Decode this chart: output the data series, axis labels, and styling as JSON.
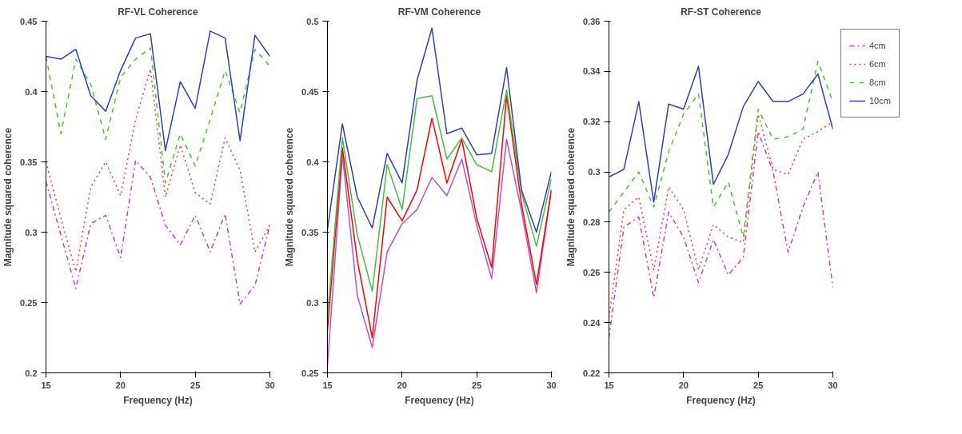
{
  "chart_data": [
    {
      "type": "line",
      "title": "RF-VL Coherence",
      "xlabel": "Frequency (Hz)",
      "ylabel": "Magnitude squared coherence",
      "x": [
        15,
        16,
        17,
        18,
        19,
        20,
        21,
        22,
        23,
        24,
        25,
        26,
        27,
        28,
        29,
        30
      ],
      "xlim": [
        15,
        30
      ],
      "xticks": [
        15,
        20,
        25,
        30
      ],
      "ylim": [
        0.2,
        0.45
      ],
      "yticks": [
        0.2,
        0.25,
        0.3,
        0.35,
        0.4,
        0.45
      ],
      "grid": false,
      "legend": false,
      "marker": "none",
      "series": [
        {
          "color": "#c040c0",
          "line_style": "dashdot",
          "values": [
            0.336,
            0.298,
            0.26,
            0.306,
            0.312,
            0.282,
            0.351,
            0.339,
            0.305,
            0.291,
            0.312,
            0.286,
            0.313,
            0.249,
            0.262,
            0.305
          ]
        },
        {
          "color": "#ff3030",
          "line_style": "dotted",
          "values": [
            0.35,
            0.31,
            0.272,
            0.332,
            0.35,
            0.326,
            0.38,
            0.416,
            0.325,
            0.362,
            0.328,
            0.32,
            0.367,
            0.344,
            0.286,
            0.305
          ]
        },
        {
          "color": "#50c030",
          "line_style": "dashed",
          "values": [
            0.425,
            0.37,
            0.423,
            0.405,
            0.366,
            0.41,
            0.423,
            0.431,
            0.335,
            0.37,
            0.347,
            0.38,
            0.415,
            0.385,
            0.43,
            0.418
          ]
        },
        {
          "color": "#3040b0",
          "line_style": "solid",
          "values": [
            0.425,
            0.423,
            0.43,
            0.397,
            0.386,
            0.415,
            0.438,
            0.441,
            0.358,
            0.407,
            0.388,
            0.443,
            0.438,
            0.365,
            0.44,
            0.425
          ]
        }
      ]
    },
    {
      "type": "line",
      "title": "RF-VM Coherence",
      "xlabel": "Frequency (Hz)",
      "ylabel": "Magnitude squared coherence",
      "x": [
        15,
        16,
        17,
        18,
        19,
        20,
        21,
        22,
        23,
        24,
        25,
        26,
        27,
        28,
        29,
        30
      ],
      "xlim": [
        15,
        30
      ],
      "xticks": [
        15,
        20,
        25,
        30
      ],
      "ylim": [
        0.25,
        0.5
      ],
      "yticks": [
        0.25,
        0.3,
        0.35,
        0.4,
        0.45,
        0.5
      ],
      "grid": false,
      "legend": false,
      "marker": "none",
      "series": [
        {
          "color": "#c050c0",
          "line_style": "solid",
          "values": [
            0.255,
            0.405,
            0.305,
            0.268,
            0.336,
            0.356,
            0.366,
            0.389,
            0.376,
            0.402,
            0.355,
            0.317,
            0.416,
            0.365,
            0.307,
            0.38
          ]
        },
        {
          "color": "#ff0000",
          "line_style": "solid",
          "values": [
            0.28,
            0.41,
            0.33,
            0.275,
            0.375,
            0.358,
            0.38,
            0.431,
            0.385,
            0.416,
            0.36,
            0.325,
            0.447,
            0.37,
            0.313,
            0.38
          ]
        },
        {
          "color": "#40c040",
          "line_style": "solid",
          "values": [
            0.29,
            0.417,
            0.348,
            0.308,
            0.398,
            0.366,
            0.445,
            0.447,
            0.402,
            0.417,
            0.398,
            0.393,
            0.451,
            0.378,
            0.34,
            0.388
          ]
        },
        {
          "color": "#3040b0",
          "line_style": "solid",
          "values": [
            0.352,
            0.427,
            0.375,
            0.353,
            0.406,
            0.385,
            0.458,
            0.495,
            0.42,
            0.424,
            0.405,
            0.406,
            0.467,
            0.38,
            0.35,
            0.393
          ]
        }
      ]
    },
    {
      "type": "line",
      "title": "RF-ST Coherence",
      "xlabel": "Frequency (Hz)",
      "ylabel": "Magnitude squared coherence",
      "x": [
        15,
        16,
        17,
        18,
        19,
        20,
        21,
        22,
        23,
        24,
        25,
        26,
        27,
        28,
        29,
        30
      ],
      "xlim": [
        15,
        30
      ],
      "xticks": [
        15,
        20,
        25,
        30
      ],
      "ylim": [
        0.22,
        0.36
      ],
      "yticks": [
        0.22,
        0.24,
        0.26,
        0.28,
        0.3,
        0.32,
        0.34,
        0.36
      ],
      "grid": false,
      "legend": "right",
      "marker": "none",
      "series": [
        {
          "name": "4cm",
          "color": "#c040c0",
          "line_style": "dashdot",
          "values": [
            0.234,
            0.278,
            0.282,
            0.25,
            0.284,
            0.274,
            0.256,
            0.273,
            0.259,
            0.266,
            0.316,
            0.3,
            0.268,
            0.286,
            0.3,
            0.254
          ]
        },
        {
          "name": "6cm",
          "color": "#ff3030",
          "line_style": "dotted",
          "values": [
            0.242,
            0.285,
            0.29,
            0.261,
            0.294,
            0.285,
            0.261,
            0.279,
            0.274,
            0.272,
            0.323,
            0.301,
            0.299,
            0.313,
            0.316,
            0.32
          ]
        },
        {
          "name": "8cm",
          "color": "#50c030",
          "line_style": "dashed",
          "values": [
            0.284,
            0.292,
            0.3,
            0.286,
            0.308,
            0.323,
            0.331,
            0.286,
            0.296,
            0.274,
            0.325,
            0.313,
            0.314,
            0.317,
            0.344,
            0.328
          ]
        },
        {
          "name": "10cm",
          "color": "#3040b0",
          "line_style": "solid",
          "values": [
            0.298,
            0.301,
            0.328,
            0.288,
            0.327,
            0.325,
            0.342,
            0.295,
            0.307,
            0.326,
            0.336,
            0.328,
            0.328,
            0.331,
            0.339,
            0.317
          ]
        }
      ]
    }
  ]
}
